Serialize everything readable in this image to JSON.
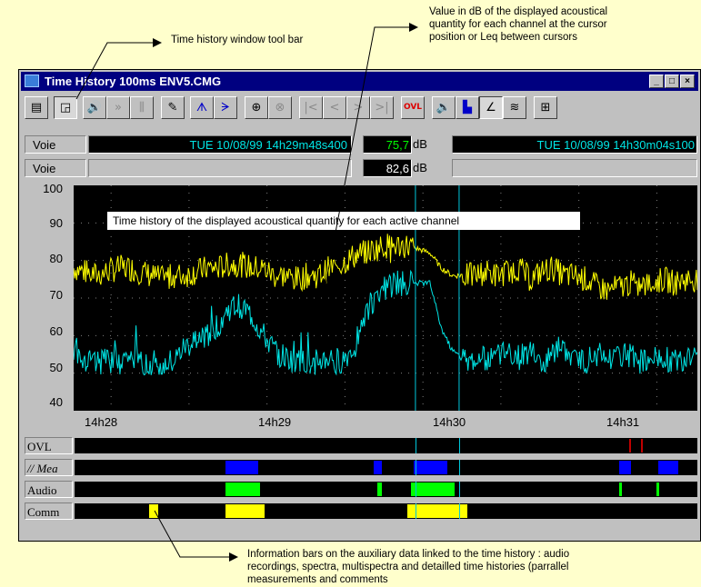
{
  "annotations": {
    "toolbar": "Time history window tool bar",
    "value": [
      "Value in dB of the displayed acoustical",
      "quantity for each channel at the cursor",
      "position or Leq between cursors"
    ],
    "plot": "Time history of the displayed acoustical quantity for each active channel",
    "info_bars": [
      "Information bars on the auxiliary data linked to the time history : audio",
      "recordings, spectra, multispectra and detailled time histories (parrallel",
      "measurements and comments"
    ]
  },
  "window": {
    "title": "Time History 100ms ENV5.CMG",
    "controls": [
      "_",
      "□",
      "×"
    ]
  },
  "toolbar": {
    "buttons": [
      {
        "name": "results-table",
        "glyph": "▤"
      },
      {
        "name": "plot-view",
        "glyph": "◲"
      },
      {
        "name": "audio-play",
        "glyph": "🔊"
      },
      {
        "name": "fast-forward",
        "glyph": "»"
      },
      {
        "name": "spectrum",
        "glyph": "⫼"
      },
      {
        "name": "pencil",
        "glyph": "✎"
      },
      {
        "name": "marker-a",
        "glyph": "ᗑ"
      },
      {
        "name": "marker-b",
        "glyph": "ᗒ"
      },
      {
        "name": "zoom-in",
        "glyph": "⊕"
      },
      {
        "name": "zoom-out",
        "glyph": "⊗"
      },
      {
        "name": "go-first",
        "glyph": "|<"
      },
      {
        "name": "go-prev",
        "glyph": "<"
      },
      {
        "name": "go-next",
        "glyph": ">"
      },
      {
        "name": "go-last",
        "glyph": ">|"
      },
      {
        "name": "overload",
        "glyph": "OVL"
      },
      {
        "name": "audio-record",
        "glyph": "🔉"
      },
      {
        "name": "multispectrum",
        "glyph": "▙"
      },
      {
        "name": "edit-curve",
        "glyph": "∠"
      },
      {
        "name": "filter",
        "glyph": "≋"
      },
      {
        "name": "cursor-grid",
        "glyph": "⊞"
      }
    ]
  },
  "channels": [
    {
      "label": "Voie",
      "cursor1_time": "TUE 10/08/99 14h29m48s400",
      "value": "75,7",
      "unit": "dB",
      "cursor2_time": "TUE 10/08/99 14h30m04s100"
    },
    {
      "label": "Voie",
      "cursor1_time": "",
      "value": "82,6",
      "unit": "dB",
      "cursor2_time": ""
    }
  ],
  "chart_data": {
    "type": "line",
    "ylim": [
      40,
      100
    ],
    "yticks": [
      "100",
      "90",
      "80",
      "70",
      "60",
      "50",
      "40"
    ],
    "xticks": [
      "14h28",
      "14h29",
      "14h30",
      "14h31"
    ],
    "cursors": [
      "14h29m48s400",
      "14h30m04s100"
    ],
    "series": [
      {
        "color": "#ffff00",
        "values": [
          78,
          77,
          76,
          77,
          78,
          78,
          77,
          76,
          75,
          76,
          76,
          77,
          78,
          78,
          79,
          79,
          78,
          78,
          76,
          76,
          75,
          76,
          76,
          78,
          79,
          81,
          82,
          83,
          84,
          84,
          84,
          83,
          82,
          78,
          76,
          76,
          76,
          77,
          76,
          77,
          78,
          75,
          77,
          78,
          76,
          76,
          75,
          73,
          72,
          73,
          74,
          73,
          74,
          75,
          74,
          75,
          75
        ]
      },
      {
        "color": "#00e5e5",
        "values": [
          57,
          54,
          53,
          53,
          53,
          54,
          53,
          53,
          52,
          53,
          57,
          58,
          60,
          63,
          67,
          68,
          65,
          60,
          56,
          54,
          53,
          53,
          53,
          54,
          53,
          56,
          65,
          70,
          73,
          74,
          74,
          74,
          74,
          62,
          56,
          54,
          54,
          54,
          55,
          56,
          54,
          56,
          53,
          55,
          56,
          54,
          53,
          55,
          53,
          54,
          55,
          53,
          54,
          54,
          53,
          54,
          55
        ]
      }
    ]
  },
  "aux_rows": [
    {
      "label": "OVL",
      "color": "#c00000",
      "segments": [
        [
          0.891,
          0.893
        ],
        [
          0.909,
          0.911
        ]
      ]
    },
    {
      "label": "// Mea",
      "color": "#0000ff",
      "segments": [
        [
          0.243,
          0.295
        ],
        [
          0.48,
          0.494
        ],
        [
          0.545,
          0.598
        ],
        [
          0.874,
          0.893
        ],
        [
          0.937,
          0.97
        ]
      ]
    },
    {
      "label": "Audio",
      "color": "#00ff00",
      "segments": [
        [
          0.243,
          0.298
        ],
        [
          0.486,
          0.493
        ],
        [
          0.54,
          0.61
        ],
        [
          0.875,
          0.879
        ],
        [
          0.935,
          0.938
        ]
      ]
    },
    {
      "label": "Comm",
      "color": "#ffff00",
      "segments": [
        [
          0.12,
          0.135
        ],
        [
          0.243,
          0.305
        ],
        [
          0.535,
          0.63
        ]
      ]
    }
  ]
}
